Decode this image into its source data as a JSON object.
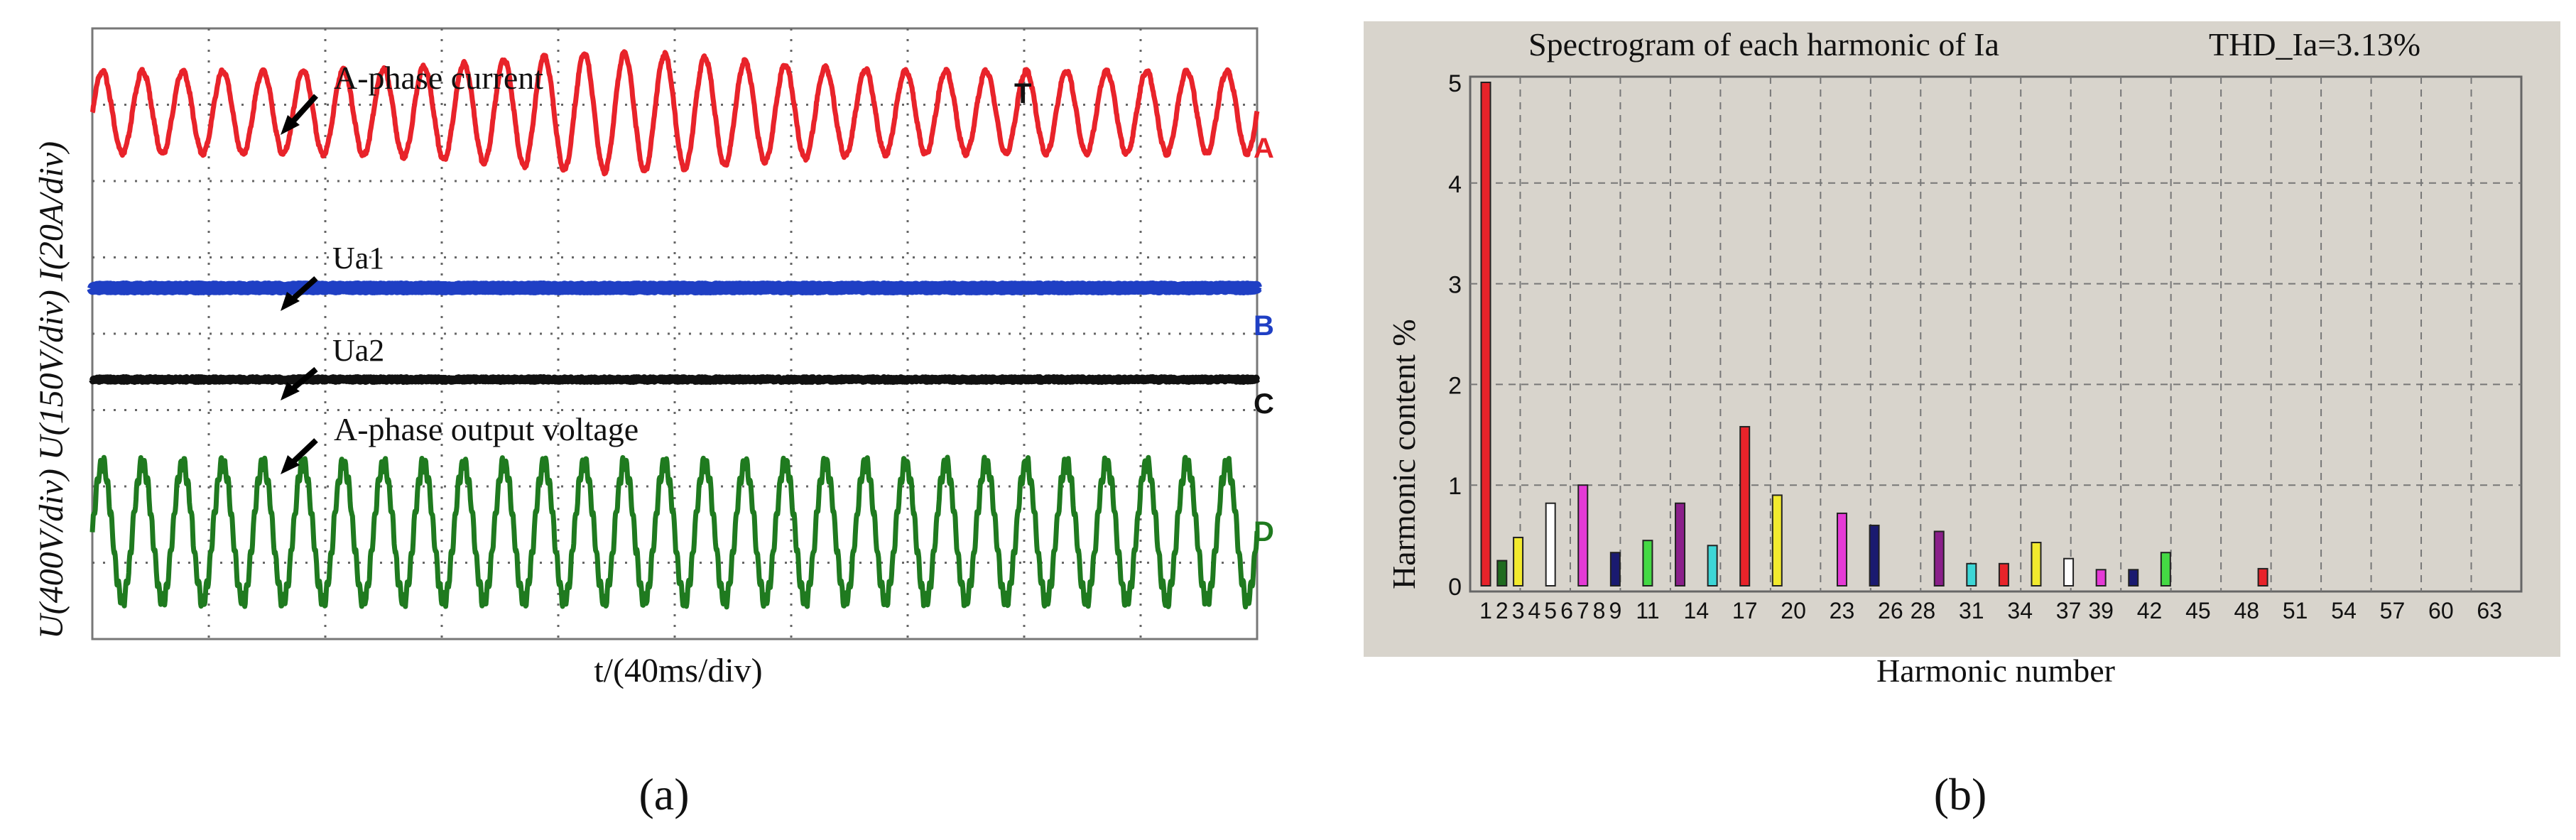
{
  "panel_a": {
    "caption": "(a)",
    "y_axis_label": "U(400V/div) U(150V/div) I(20A/div)",
    "x_axis_label": "t/(40ms/div)",
    "annotations": [
      "A-phase current",
      "Ua1",
      "Ua2",
      "A-phase output voltage"
    ],
    "channel_markers": [
      "A",
      "B",
      "C",
      "D"
    ],
    "trigger_marker": "T",
    "colors": {
      "A": "#e8232a",
      "B": "#1f3fc4",
      "C": "#111111",
      "D": "#1f7a1f",
      "grid_bg": "#ffffff",
      "grid": "#555555"
    }
  },
  "panel_b": {
    "caption": "(b)",
    "title": "Spectrogram of each harmonic of Ia",
    "thd": "THD_Ia=3.13%",
    "colors": {
      "plot_bg": "#d8d4cc",
      "frame_bg": "#d8d4cc",
      "grid": "#888888"
    }
  },
  "chart_data": [
    {
      "type": "line",
      "title": "",
      "xlabel": "t/(40ms/div)",
      "ylabel": "U(400V/div) U(150V/div) I(20A/div)",
      "grid": true,
      "divisions": {
        "x": 10,
        "y": 8
      },
      "series": [
        {
          "name": "A-phase current",
          "marker": "A",
          "color": "#e8232a",
          "shape": "sinusoid",
          "cycles": 29,
          "amplitude_div": 0.6,
          "center_div": 1.1,
          "note": "amplitude rises mid-record"
        },
        {
          "name": "Ua1",
          "marker": "B",
          "color": "#1f3fc4",
          "shape": "dc",
          "center_div": 3.4
        },
        {
          "name": "Ua2",
          "marker": "C",
          "color": "#111111",
          "shape": "dc",
          "center_div": 4.6
        },
        {
          "name": "A-phase output voltage",
          "marker": "D",
          "color": "#1f7a1f",
          "shape": "sinusoid",
          "cycles": 29,
          "amplitude_div": 0.9,
          "center_div": 6.6
        }
      ]
    },
    {
      "type": "bar",
      "title": "Spectrogram of each harmonic of Ia",
      "xlabel": "Harmonic number",
      "ylabel": "Harmonic content %",
      "ylim": [
        0,
        5
      ],
      "yticks": [
        0,
        1,
        2,
        3,
        4,
        5
      ],
      "xlim": [
        0,
        64
      ],
      "xtick_labels": [
        "1",
        "2",
        "3",
        "4",
        "5",
        "6",
        "7",
        "8",
        "9",
        "11",
        "14",
        "17",
        "20",
        "23",
        "26",
        "28",
        "31",
        "34",
        "37",
        "39",
        "42",
        "45",
        "48",
        "51",
        "54",
        "57",
        "60",
        "63"
      ],
      "grid": true,
      "bars": [
        {
          "h": 1,
          "v": 5.0,
          "color": "#e8232a"
        },
        {
          "h": 2,
          "v": 0.25,
          "color": "#1f6b1f"
        },
        {
          "h": 3,
          "v": 0.48,
          "color": "#f2ea2e"
        },
        {
          "h": 5,
          "v": 0.82,
          "color": "#ffffff"
        },
        {
          "h": 7,
          "v": 1.0,
          "color": "#e53ad6"
        },
        {
          "h": 9,
          "v": 0.33,
          "color": "#1a1a70"
        },
        {
          "h": 11,
          "v": 0.45,
          "color": "#44d944"
        },
        {
          "h": 13,
          "v": 0.82,
          "color": "#8a1f8a"
        },
        {
          "h": 15,
          "v": 0.4,
          "color": "#3dd6d6"
        },
        {
          "h": 17,
          "v": 1.58,
          "color": "#e8232a"
        },
        {
          "h": 19,
          "v": 0.9,
          "color": "#f2ea2e"
        },
        {
          "h": 23,
          "v": 0.72,
          "color": "#e53ad6"
        },
        {
          "h": 25,
          "v": 0.6,
          "color": "#1a1a70"
        },
        {
          "h": 29,
          "v": 0.54,
          "color": "#8a1f8a"
        },
        {
          "h": 31,
          "v": 0.22,
          "color": "#3dd6d6"
        },
        {
          "h": 33,
          "v": 0.22,
          "color": "#e8232a"
        },
        {
          "h": 35,
          "v": 0.43,
          "color": "#f2ea2e"
        },
        {
          "h": 37,
          "v": 0.27,
          "color": "#ffffff"
        },
        {
          "h": 39,
          "v": 0.16,
          "color": "#e53ad6"
        },
        {
          "h": 41,
          "v": 0.16,
          "color": "#1a1a70"
        },
        {
          "h": 43,
          "v": 0.33,
          "color": "#44d944"
        },
        {
          "h": 49,
          "v": 0.17,
          "color": "#e8232a"
        }
      ]
    }
  ]
}
